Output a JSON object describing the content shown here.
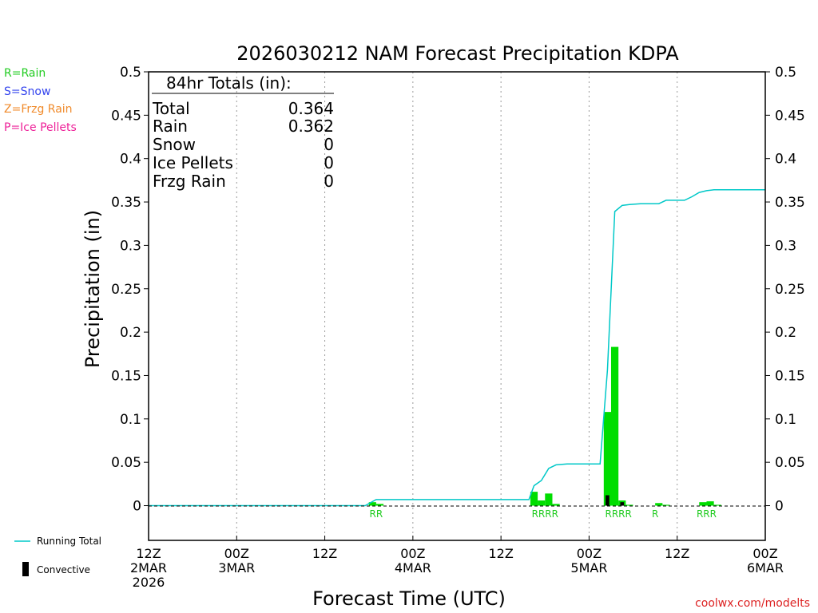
{
  "chart_data": {
    "type": "bar",
    "title": "2026030212 NAM Forecast Precipitation KDPA",
    "xlabel": "Forecast Time (UTC)",
    "ylabel": "Precipitation (in)",
    "ylim": [
      -0.04,
      0.5
    ],
    "xlim_hours": [
      0,
      84
    ],
    "yticks": [
      0,
      0.05,
      0.1,
      0.15,
      0.2,
      0.25,
      0.3,
      0.35,
      0.4,
      0.45,
      0.5
    ],
    "ytick_labels": [
      "0",
      "0.05",
      "0.1",
      "0.15",
      "0.2",
      "0.25",
      "0.3",
      "0.35",
      "0.4",
      "0.45",
      "0.5"
    ],
    "xticks": [
      {
        "hour": 0,
        "lines": [
          "12Z",
          "2MAR",
          "2026"
        ]
      },
      {
        "hour": 12,
        "lines": [
          "00Z",
          "3MAR"
        ]
      },
      {
        "hour": 24,
        "lines": [
          "12Z"
        ]
      },
      {
        "hour": 36,
        "lines": [
          "00Z",
          "4MAR"
        ]
      },
      {
        "hour": 48,
        "lines": [
          "12Z"
        ]
      },
      {
        "hour": 60,
        "lines": [
          "00Z",
          "5MAR"
        ]
      },
      {
        "hour": 72,
        "lines": [
          "12Z"
        ]
      },
      {
        "hour": 84,
        "lines": [
          "00Z",
          "6MAR"
        ]
      }
    ],
    "grid_hours": [
      12,
      24,
      36,
      48,
      60,
      72
    ],
    "series": [
      {
        "name": "Rain",
        "color": "#00dd00",
        "bar_width_hours": 1,
        "hours": [
          30,
          31,
          52,
          53,
          54,
          55,
          62,
          63,
          64,
          65,
          69,
          70,
          75,
          76,
          77
        ],
        "values": [
          0.004,
          0.002,
          0.016,
          0.006,
          0.014,
          0.002,
          0.108,
          0.183,
          0.006,
          0.001,
          0.003,
          0.001,
          0.004,
          0.005,
          0.001
        ]
      },
      {
        "name": "Convective",
        "color": "#000000",
        "bar_width_hours": 0.5,
        "hours": [
          62.25,
          64.25
        ],
        "values": [
          0.012,
          0.004
        ]
      },
      {
        "name": "Running Total",
        "color": "#00c8c8",
        "type": "line",
        "hours": [
          0,
          29.5,
          31,
          51.8,
          52.5,
          53.5,
          54.5,
          55.5,
          57,
          61.5,
          62.5,
          63.5,
          64.5,
          65.5,
          67,
          69.5,
          70.5,
          73,
          74,
          75,
          76,
          77,
          80,
          84
        ],
        "values": [
          0,
          0,
          0.007,
          0.007,
          0.023,
          0.029,
          0.043,
          0.047,
          0.048,
          0.048,
          0.156,
          0.339,
          0.346,
          0.347,
          0.348,
          0.348,
          0.352,
          0.352,
          0.356,
          0.361,
          0.363,
          0.364,
          0.364,
          0.364
        ]
      }
    ],
    "ptype_markers": [
      {
        "hour": 31,
        "text": "RR"
      },
      {
        "hour": 54,
        "text": "RRRR"
      },
      {
        "hour": 64,
        "text": "RRRR"
      },
      {
        "hour": 69,
        "text": "R"
      },
      {
        "hour": 76,
        "text": "RRR"
      }
    ],
    "totals_box": {
      "heading": "84hr Totals (in):",
      "rows": [
        {
          "label": "Total",
          "value": "0.364"
        },
        {
          "label": "Rain",
          "value": "0.362"
        },
        {
          "label": "Snow",
          "value": "0"
        },
        {
          "label": "Ice Pellets",
          "value": "0"
        },
        {
          "label": "Frzg Rain",
          "value": "0"
        }
      ]
    }
  },
  "legend": {
    "ptype": [
      {
        "text": "R=Rain",
        "color": "#22cc22"
      },
      {
        "text": "S=Snow",
        "color": "#3344ee"
      },
      {
        "text": "Z=Frzg Rain",
        "color": "#f08a2a"
      },
      {
        "text": "P=Ice Pellets",
        "color": "#ee2299"
      }
    ],
    "running_total_label": "Running Total",
    "convective_label": "Convective"
  },
  "credit": "coolwx.com/modelts",
  "colors": {
    "credit": "#dd2222",
    "ptype_marker": "#22cc22"
  }
}
